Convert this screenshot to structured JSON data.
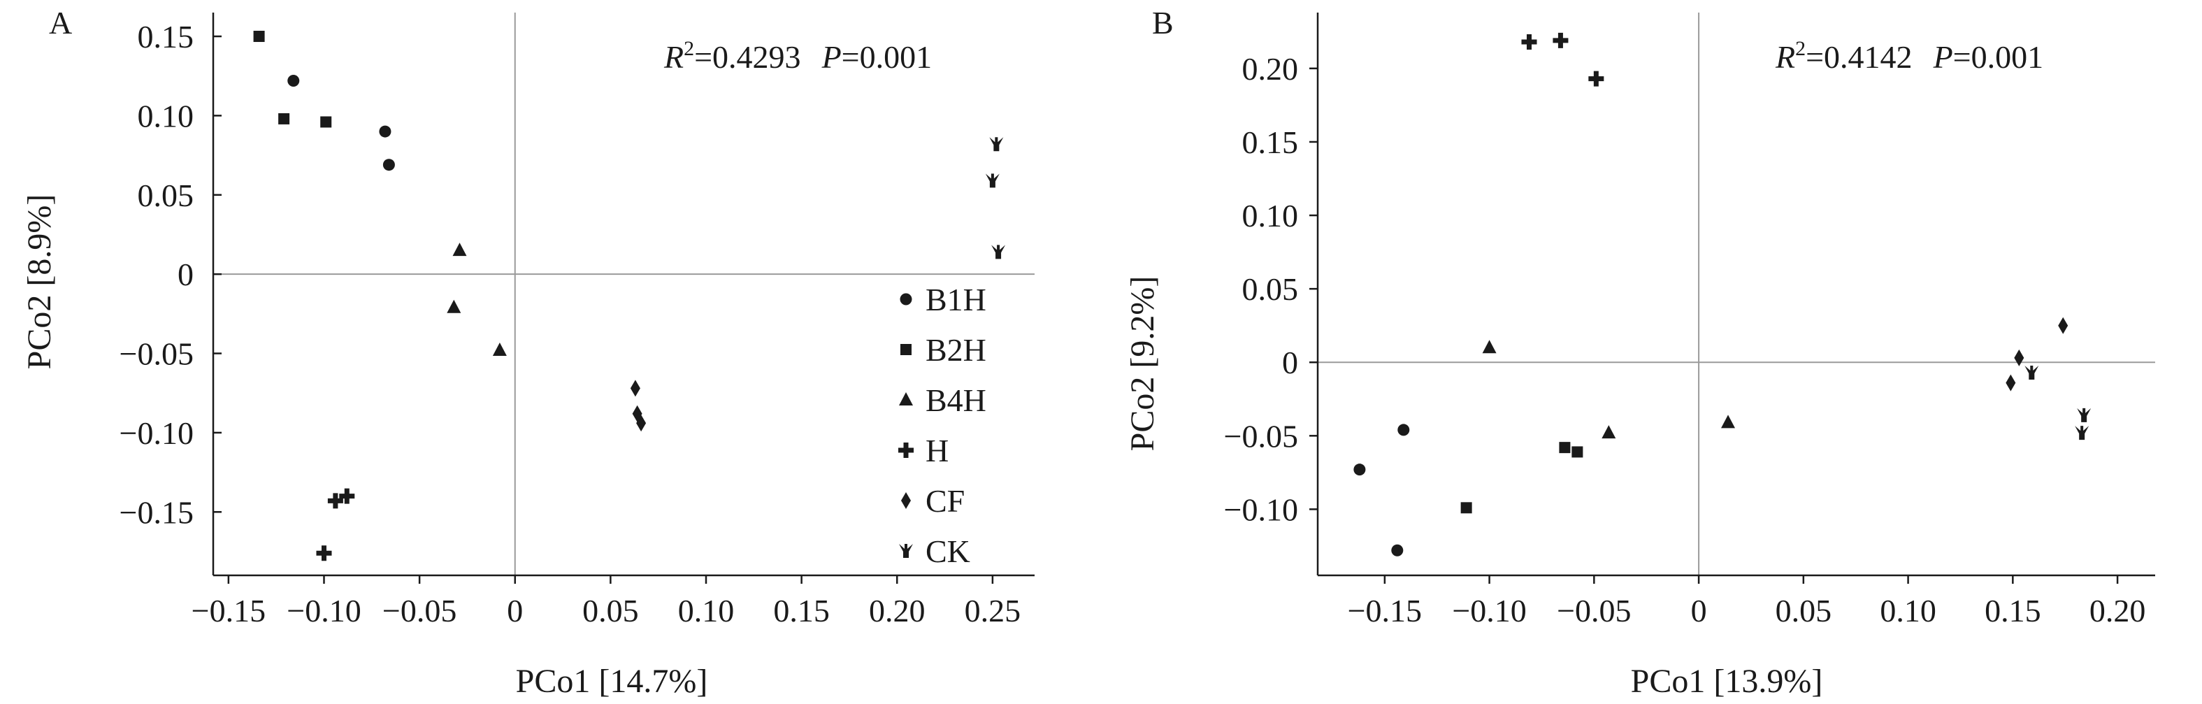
{
  "figure": {
    "background": "#ffffff",
    "ink": "#1a1a1a",
    "zero_line_color": "#9a9a9a"
  },
  "legend": {
    "placement": "inside-bottom-right of panel A",
    "entries": [
      {
        "group": "B1H",
        "label": "B1H",
        "marker": "circle-icon"
      },
      {
        "group": "B2H",
        "label": "B2H",
        "marker": "square-icon"
      },
      {
        "group": "B4H",
        "label": "B4H",
        "marker": "triangle-icon"
      },
      {
        "group": "H",
        "label": "H",
        "marker": "cross-icon"
      },
      {
        "group": "CF",
        "label": "CF",
        "marker": "diamond-icon"
      },
      {
        "group": "CK",
        "label": "CK",
        "marker": "tri-star-icon"
      }
    ]
  },
  "chart_data": [
    {
      "type": "scatter",
      "panel": "A",
      "xlabel": "PCo1 [14.7%]",
      "ylabel": "PCo2 [8.9%]",
      "stats": {
        "r2_symbol": "R",
        "r2_sup": "2",
        "r2_value": "=0.4293",
        "p_symbol": "P",
        "p_value": "=0.001"
      },
      "xlim": [
        -0.158,
        0.272
      ],
      "ylim": [
        -0.19,
        0.165
      ],
      "xticks": [
        -0.15,
        -0.1,
        -0.05,
        0,
        0.05,
        0.1,
        0.15,
        0.2,
        0.25
      ],
      "xtick_labels": [
        "−0.15",
        "−0.10",
        "−0.05",
        "0",
        "0.05",
        "0.10",
        "0.15",
        "0.20",
        "0.25"
      ],
      "yticks": [
        0.15,
        0.1,
        0.05,
        0,
        -0.05,
        -0.1,
        -0.15
      ],
      "ytick_labels": [
        "0.15",
        "0.10",
        "0.05",
        "0",
        "−0.05",
        "−0.10",
        "−0.15"
      ],
      "grid": false,
      "zero_lines": true,
      "series": [
        {
          "name": "B1H",
          "marker": "circle",
          "points": [
            [
              -0.116,
              0.122
            ],
            [
              -0.068,
              0.09
            ],
            [
              -0.066,
              0.069
            ]
          ]
        },
        {
          "name": "B2H",
          "marker": "square",
          "points": [
            [
              -0.134,
              0.15
            ],
            [
              -0.121,
              0.098
            ],
            [
              -0.099,
              0.096
            ]
          ]
        },
        {
          "name": "B4H",
          "marker": "triangle",
          "points": [
            [
              -0.029,
              0.015
            ],
            [
              -0.032,
              -0.021
            ],
            [
              -0.008,
              -0.048
            ]
          ]
        },
        {
          "name": "H",
          "marker": "cross",
          "points": [
            [
              -0.094,
              -0.143
            ],
            [
              -0.088,
              -0.14
            ],
            [
              -0.1,
              -0.176
            ]
          ]
        },
        {
          "name": "CF",
          "marker": "diamond",
          "points": [
            [
              0.063,
              -0.072
            ],
            [
              0.064,
              -0.088
            ],
            [
              0.066,
              -0.094
            ]
          ]
        },
        {
          "name": "CK",
          "marker": "tri-star",
          "points": [
            [
              0.252,
              0.082
            ],
            [
              0.25,
              0.059
            ],
            [
              0.253,
              0.014
            ]
          ]
        }
      ]
    },
    {
      "type": "scatter",
      "panel": "B",
      "xlabel": "PCo1 [13.9%]",
      "ylabel": "PCo2 [9.2%]",
      "stats": {
        "r2_symbol": "R",
        "r2_sup": "2",
        "r2_value": "=0.4142",
        "p_symbol": "P",
        "p_value": "=0.001"
      },
      "xlim": [
        -0.182,
        0.218
      ],
      "ylim": [
        -0.145,
        0.238
      ],
      "xticks": [
        -0.15,
        -0.1,
        -0.05,
        0,
        0.05,
        0.1,
        0.15,
        0.2
      ],
      "xtick_labels": [
        "−0.15",
        "−0.10",
        "−0.05",
        "0",
        "0.05",
        "0.10",
        "0.15",
        "0.20"
      ],
      "yticks": [
        0.2,
        0.15,
        0.1,
        0.05,
        0,
        -0.05,
        -0.1
      ],
      "ytick_labels": [
        "0.20",
        "0.15",
        "0.10",
        "0.05",
        "0",
        "−0.05",
        "−0.10"
      ],
      "grid": false,
      "zero_lines": true,
      "series": [
        {
          "name": "B1H",
          "marker": "circle",
          "points": [
            [
              -0.162,
              -0.073
            ],
            [
              -0.141,
              -0.046
            ],
            [
              -0.144,
              -0.128
            ]
          ]
        },
        {
          "name": "B2H",
          "marker": "square",
          "points": [
            [
              -0.111,
              -0.099
            ],
            [
              -0.064,
              -0.058
            ],
            [
              -0.058,
              -0.061
            ]
          ]
        },
        {
          "name": "B4H",
          "marker": "triangle",
          "points": [
            [
              -0.1,
              0.01
            ],
            [
              -0.043,
              -0.048
            ],
            [
              0.014,
              -0.041
            ]
          ]
        },
        {
          "name": "H",
          "marker": "cross",
          "points": [
            [
              -0.081,
              0.218
            ],
            [
              -0.066,
              0.219
            ],
            [
              -0.049,
              0.193
            ]
          ]
        },
        {
          "name": "CF",
          "marker": "diamond",
          "points": [
            [
              0.149,
              -0.014
            ],
            [
              0.153,
              0.003
            ],
            [
              0.174,
              0.025
            ]
          ]
        },
        {
          "name": "CK",
          "marker": "tri-star",
          "points": [
            [
              0.159,
              -0.007
            ],
            [
              0.184,
              -0.036
            ],
            [
              0.183,
              -0.048
            ]
          ]
        }
      ]
    }
  ]
}
